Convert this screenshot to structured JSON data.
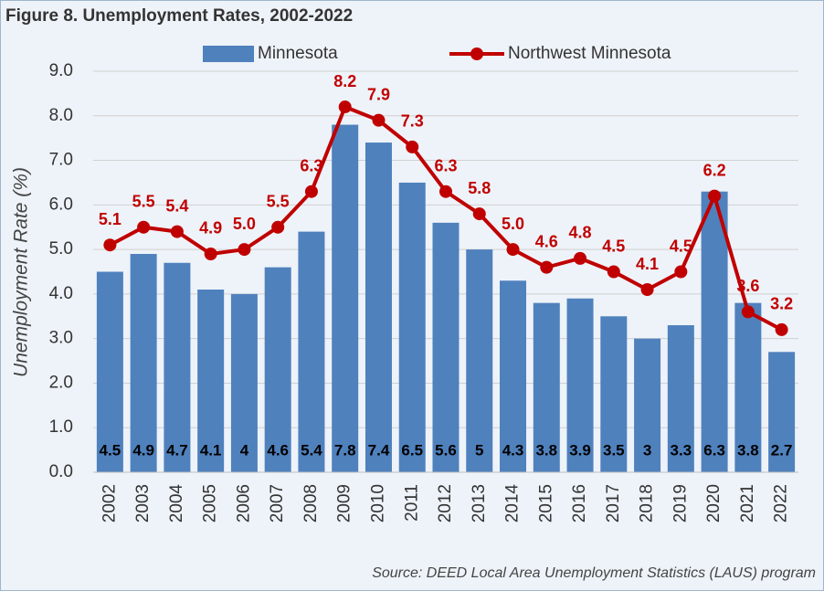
{
  "chart_data": {
    "type": "bar_line",
    "title": "Figure 8. Unemployment Rates, 2002-2022",
    "y_label": "Unemployment Rate (%)",
    "source": "Source: DEED Local Area Unemployment Statistics (LAUS) program",
    "categories": [
      "2002",
      "2003",
      "2004",
      "2005",
      "2006",
      "2007",
      "2008",
      "2009",
      "2010",
      "2011",
      "2012",
      "2013",
      "2014",
      "2015",
      "2016",
      "2017",
      "2018",
      "2019",
      "2020",
      "2021",
      "2022"
    ],
    "series": [
      {
        "name": "Minnesota",
        "type": "bar",
        "color": "#4f81bd",
        "values": [
          4.5,
          4.9,
          4.7,
          4.1,
          4,
          4.6,
          5.4,
          7.8,
          7.4,
          6.5,
          5.6,
          5,
          4.3,
          3.8,
          3.9,
          3.5,
          3,
          3.3,
          6.3,
          3.8,
          2.7
        ]
      },
      {
        "name": "Northwest Minnesota",
        "type": "line",
        "color": "#c00000",
        "values": [
          5.1,
          5.5,
          5.4,
          4.9,
          5.0,
          5.5,
          6.3,
          8.2,
          7.9,
          7.3,
          6.3,
          5.8,
          5.0,
          4.6,
          4.8,
          4.5,
          4.1,
          4.5,
          6.2,
          3.6,
          3.2
        ],
        "value_labels": [
          "5.1",
          "5.5",
          "5.4",
          "4.9",
          "5.0",
          "5.5",
          "6.3",
          "8.2",
          "7.9",
          "7.3",
          "6.3",
          "5.8",
          "5.0",
          "4.6",
          "4.8",
          "4.5",
          "4.1",
          "4.5",
          "6.2",
          "3.6",
          "3.2"
        ]
      }
    ],
    "ylim": [
      0,
      9
    ],
    "yticks": [
      {
        "value": 0,
        "label": "0.0"
      },
      {
        "value": 1,
        "label": "1.0"
      },
      {
        "value": 2,
        "label": "2.0"
      },
      {
        "value": 3,
        "label": "3.0"
      },
      {
        "value": 4,
        "label": "4.0"
      },
      {
        "value": 5,
        "label": "5.0"
      },
      {
        "value": 6,
        "label": "6.0"
      },
      {
        "value": 7,
        "label": "7.0"
      },
      {
        "value": 8,
        "label": "8.0"
      },
      {
        "value": 9,
        "label": "9.0"
      }
    ],
    "grid": true
  }
}
